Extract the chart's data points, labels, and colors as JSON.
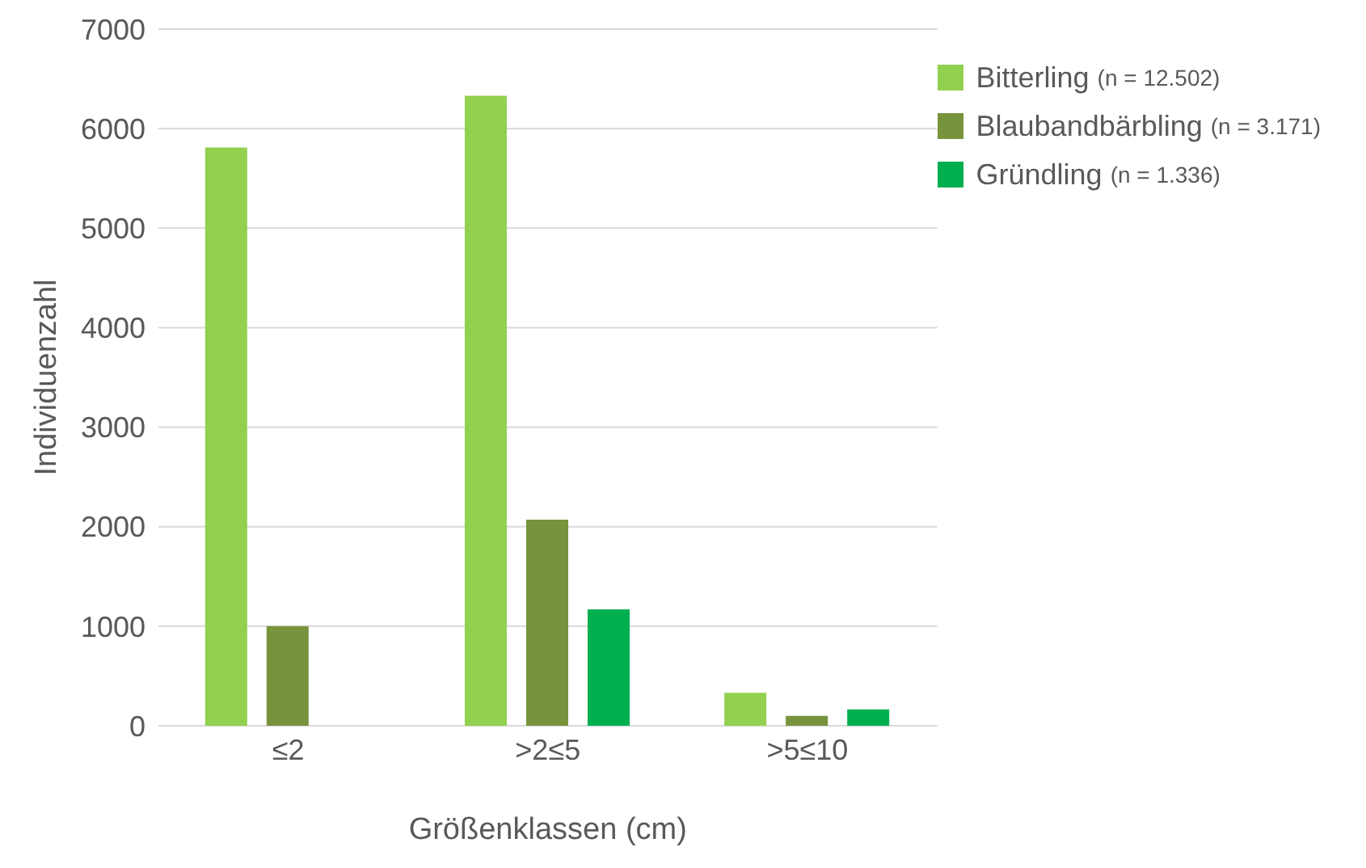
{
  "chart_data": {
    "type": "bar",
    "xlabel": "Größenklassen (cm)",
    "ylabel": "Individuenzahl",
    "categories": [
      "≤2",
      ">2≤5",
      ">5≤10"
    ],
    "series": [
      {
        "name": "Bitterling (n = 12.502)",
        "color": "#92d050",
        "values": [
          5810,
          6330,
          330
        ]
      },
      {
        "name": "Blaubandbärbling (n = 3.171)",
        "color": "#77933c",
        "values": [
          1000,
          2070,
          100
        ]
      },
      {
        "name": "Gründling (n = 1.336)",
        "color": "#00b050",
        "values": [
          null,
          1170,
          165
        ]
      }
    ],
    "ylim": [
      0,
      7000
    ],
    "yticks": [
      0,
      1000,
      2000,
      3000,
      4000,
      5000,
      6000,
      7000
    ],
    "grid": "y",
    "legend": "top right"
  }
}
